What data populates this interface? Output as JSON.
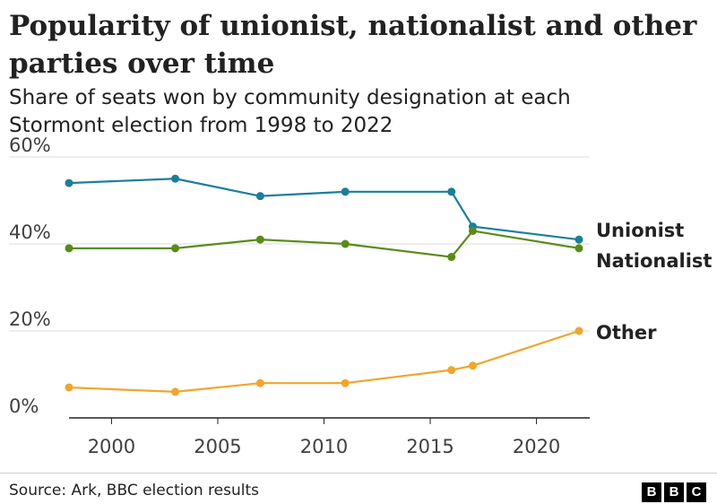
{
  "header": {
    "title": "Popularity of unionist, nationalist and other parties over time",
    "subtitle": "Share of seats won by community designation at each Stormont election from 1998 to 2022"
  },
  "footer": {
    "source": "Source: Ark, BBC election results",
    "logo_letters": [
      "B",
      "B",
      "C"
    ]
  },
  "chart_data": {
    "type": "line",
    "title": "Popularity of unionist, nationalist and other parties over time",
    "subtitle": "Share of seats won by community designation at each Stormont election from 1998 to 2022",
    "x": [
      1998,
      2003,
      2007,
      2011,
      2016,
      2017,
      2022
    ],
    "xlim": [
      1998,
      2022
    ],
    "ylim": [
      0,
      60
    ],
    "x_ticks": [
      2000,
      2005,
      2010,
      2015,
      2020
    ],
    "x_tick_labels": [
      "2000",
      "2005",
      "2010",
      "2015",
      "2020"
    ],
    "y_ticks": [
      0,
      20,
      40,
      60
    ],
    "y_tick_labels": [
      "0%",
      "20%",
      "40%",
      "60%"
    ],
    "grid": "horizontal",
    "legend": "direct labels at right end of lines",
    "series": [
      {
        "name": "Unionist",
        "color": "#1b7f9a",
        "values": [
          54,
          55,
          51,
          52,
          52,
          44,
          41
        ]
      },
      {
        "name": "Nationalist",
        "color": "#588c17",
        "values": [
          39,
          39,
          41,
          40,
          37,
          43,
          39
        ]
      },
      {
        "name": "Other",
        "color": "#f0a62a",
        "values": [
          7,
          6,
          8,
          8,
          11,
          12,
          20
        ]
      }
    ]
  }
}
